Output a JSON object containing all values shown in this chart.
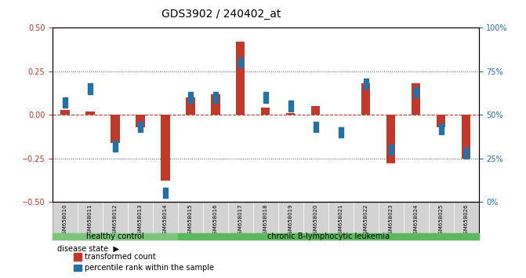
{
  "title": "GDS3902 / 240402_at",
  "samples": [
    "GSM658010",
    "GSM658011",
    "GSM658012",
    "GSM658013",
    "GSM658014",
    "GSM658015",
    "GSM658016",
    "GSM658017",
    "GSM658018",
    "GSM658019",
    "GSM658020",
    "GSM658021",
    "GSM658022",
    "GSM658023",
    "GSM658024",
    "GSM658025",
    "GSM658026"
  ],
  "red_bars": [
    0.03,
    0.02,
    -0.16,
    -0.07,
    -0.38,
    0.1,
    0.12,
    0.42,
    0.04,
    0.01,
    0.05,
    0.0,
    0.18,
    -0.28,
    0.18,
    -0.07,
    -0.25
  ],
  "blue_vals": [
    57,
    65,
    32,
    43,
    5,
    60,
    60,
    80,
    60,
    55,
    43,
    40,
    68,
    30,
    63,
    42,
    28
  ],
  "healthy_count": 5,
  "disease_labels": [
    "healthy control",
    "chronic B-lymphocytic leukemia"
  ],
  "left_ylim": [
    -0.5,
    0.5
  ],
  "right_ylim": [
    0,
    100
  ],
  "left_yticks": [
    -0.5,
    -0.25,
    0.0,
    0.25,
    0.5
  ],
  "right_yticks": [
    0,
    25,
    50,
    75,
    100
  ],
  "right_yticklabels": [
    "0%",
    "25%",
    "50%",
    "75%",
    "100%"
  ],
  "bar_color": "#C0392B",
  "blue_color": "#2471A3",
  "hline_color": "#C0392B",
  "dotted_color": "#555555",
  "healthy_bg": "#90EE90",
  "leukemia_bg": "#90EE90",
  "tick_area_bg": "#D3D3D3",
  "legend_red_label": "transformed count",
  "legend_blue_label": "percentile rank within the sample",
  "disease_state_label": "disease state"
}
